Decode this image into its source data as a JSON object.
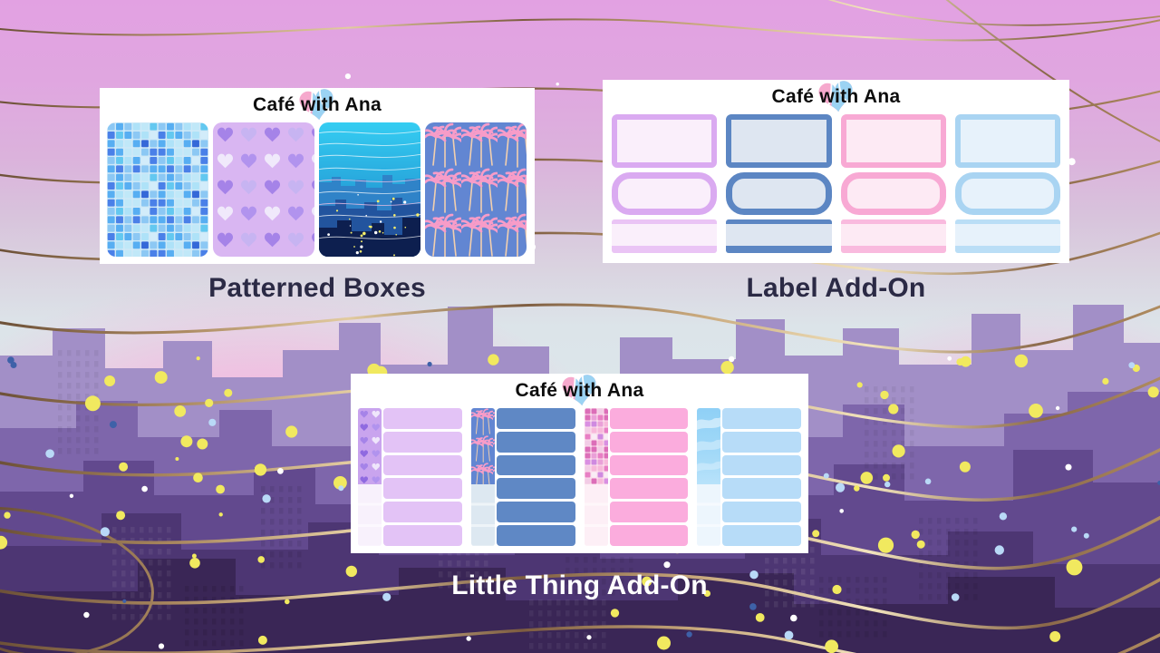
{
  "logo": {
    "text": "Café with Ana",
    "heart_pink": "#f6a9cd",
    "heart_blue": "#9bd3f3"
  },
  "sections": {
    "patterned_boxes": {
      "title": "Patterned Boxes",
      "title_color": "#2b2a45",
      "pattern_names": [
        "blue-mosaic",
        "purple-hearts",
        "city-night",
        "pink-palm-trees"
      ]
    },
    "label_add_on": {
      "title": "Label Add-On",
      "title_color": "#2b2a45",
      "label_styles": [
        "full-box",
        "rounded-box",
        "header-footer-box"
      ],
      "colorways": [
        {
          "name": "purple",
          "border": "#daaaf1",
          "fill": "#faeffb",
          "strip": "#eac4f5"
        },
        {
          "name": "blue",
          "border": "#5c86c3",
          "fill": "#dee6f1",
          "strip": "#5c86c3"
        },
        {
          "name": "pink",
          "border": "#f8a9d4",
          "fill": "#fdeaf4",
          "strip": "#f9bade"
        },
        {
          "name": "light-blue",
          "border": "#a9d4f2",
          "fill": "#e7f2fb",
          "strip": "#badef6"
        }
      ]
    },
    "little_thing_add_on": {
      "title": "Little Thing Add-On",
      "title_color": "#ffffff",
      "groups": [
        {
          "name": "purple",
          "pattern": "purple-hearts",
          "strip_color": "#f8f1fc",
          "row_color": "#e3c3f6"
        },
        {
          "name": "blue",
          "pattern": "pink-palm-trees",
          "strip_color": "#dde8f1",
          "row_color": "#5f88c5"
        },
        {
          "name": "pink",
          "pattern": "pink-mosaic",
          "strip_color": "#fdeff6",
          "row_color": "#fbacdd"
        },
        {
          "name": "light-blue",
          "pattern": "sky-waves",
          "strip_color": "#edf6fd",
          "row_color": "#b7dcf8"
        }
      ]
    }
  },
  "background": {
    "sky_top": "#e2a1e2",
    "sky_mid": "#d8c3dc",
    "sky_horizon": "#dde7eb",
    "sunset_glow": "#f9a9dd",
    "skyline_layers": [
      "#a28fc7",
      "#7e66ab",
      "#62498e",
      "#4d3673",
      "#3a2656"
    ],
    "gold_line_colors": [
      "#6d5138",
      "#a9875f",
      "#e2cba0",
      "#f2e3bd"
    ],
    "confetti_colors": [
      "#f1e95f",
      "#ffffff",
      "#b9d9f7",
      "#3e61a8"
    ],
    "mosaic_blue_palette": [
      "#4a80e8",
      "#63c8f0",
      "#aee2f8",
      "#d2ecfa",
      "#57aef2",
      "#41d9f1",
      "#8cc8f4",
      "#c0e8f8",
      "#3568d8"
    ],
    "mosaic_pink_palette": [
      "#e87fc4",
      "#d98fe2",
      "#f7b8da",
      "#fbdfee",
      "#eaa0d8",
      "#f2cce6",
      "#dc6eb8",
      "#f9ecf5",
      "#cf8ae0"
    ]
  }
}
